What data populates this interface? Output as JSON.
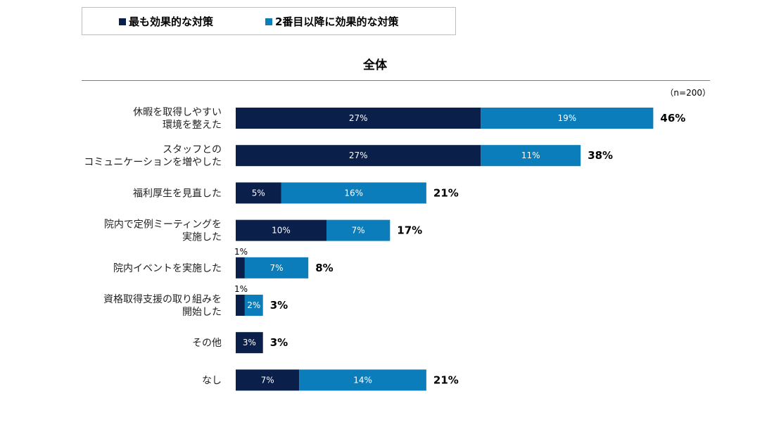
{
  "legend": {
    "items": [
      {
        "label": "最も効果的な対策",
        "color": "#0a1f4a"
      },
      {
        "label": "2番目以降に効果的な対策",
        "color": "#0b7dba"
      }
    ]
  },
  "chart_data": {
    "type": "bar",
    "orientation": "horizontal",
    "stacked": true,
    "title": "全体",
    "sample_size": "（n=200）",
    "categories": [
      [
        "休暇を取得しやすい",
        "環境を整えた"
      ],
      [
        "スタッフとの",
        "コミュニケーションを増やした"
      ],
      [
        "福利厚生を見直した"
      ],
      [
        "院内で定例ミーティングを",
        "実施した"
      ],
      [
        "院内イベントを実施した"
      ],
      [
        "資格取得支援の取り組みを",
        "開始した"
      ],
      [
        "その他"
      ],
      [
        "なし"
      ]
    ],
    "series": [
      {
        "name": "最も効果的な対策",
        "color": "#0a1f4a",
        "values": [
          27,
          27,
          5,
          10,
          1,
          1,
          3,
          7
        ]
      },
      {
        "name": "2番目以降に効果的な対策",
        "color": "#0b7dba",
        "values": [
          19,
          11,
          16,
          7,
          7,
          2,
          0,
          14
        ]
      }
    ],
    "totals": [
      46,
      38,
      21,
      17,
      8,
      3,
      3,
      21
    ],
    "value_suffix": "%",
    "grid": false
  }
}
